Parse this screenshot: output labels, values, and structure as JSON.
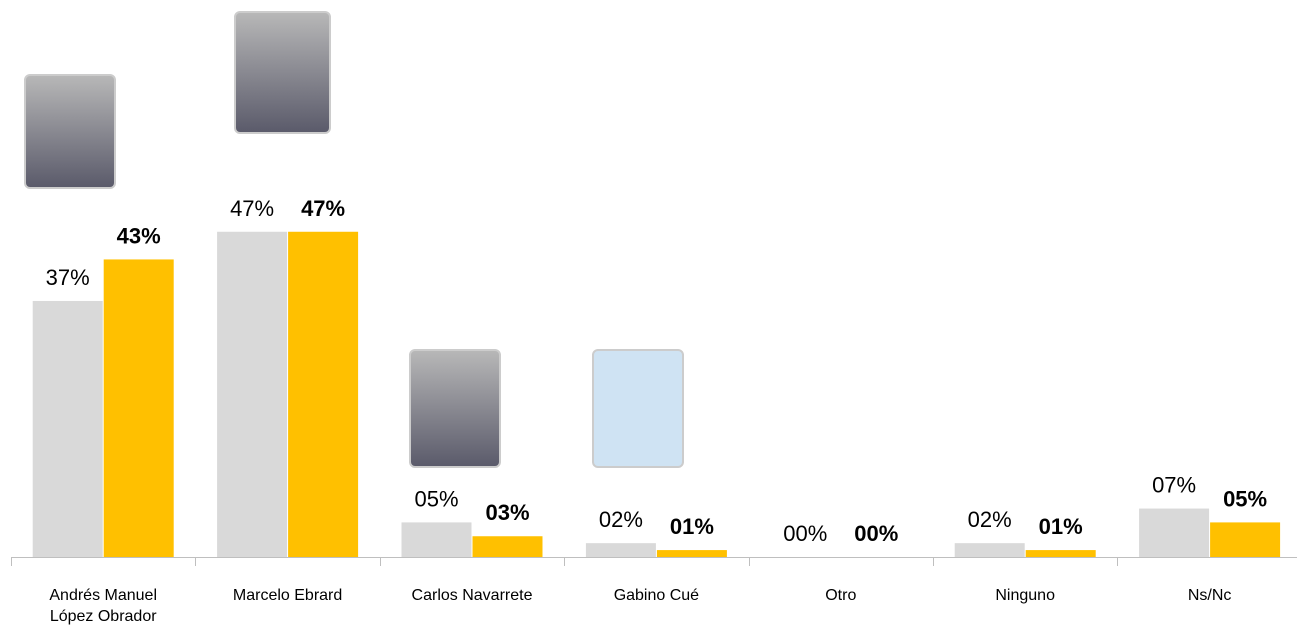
{
  "chart_data": {
    "type": "bar",
    "categories": [
      "Andrés Manuel López Obrador",
      "Marcelo Ebrard",
      "Carlos Navarrete",
      "Gabino Cué",
      "Otro",
      "Ninguno",
      "Ns/Nc"
    ],
    "series": [
      {
        "color": "#d9d9d9",
        "values": [
          37,
          47,
          5,
          2,
          0,
          2,
          7
        ],
        "value_labels": [
          "37%",
          "47%",
          "05%",
          "02%",
          "00%",
          "02%",
          "07%"
        ]
      },
      {
        "color": "#ffc000",
        "values": [
          43,
          47,
          3,
          1,
          0,
          1,
          5
        ],
        "value_labels": [
          "43%",
          "47%",
          "03%",
          "01%",
          "00%",
          "01%",
          "05%"
        ]
      }
    ]
  }
}
